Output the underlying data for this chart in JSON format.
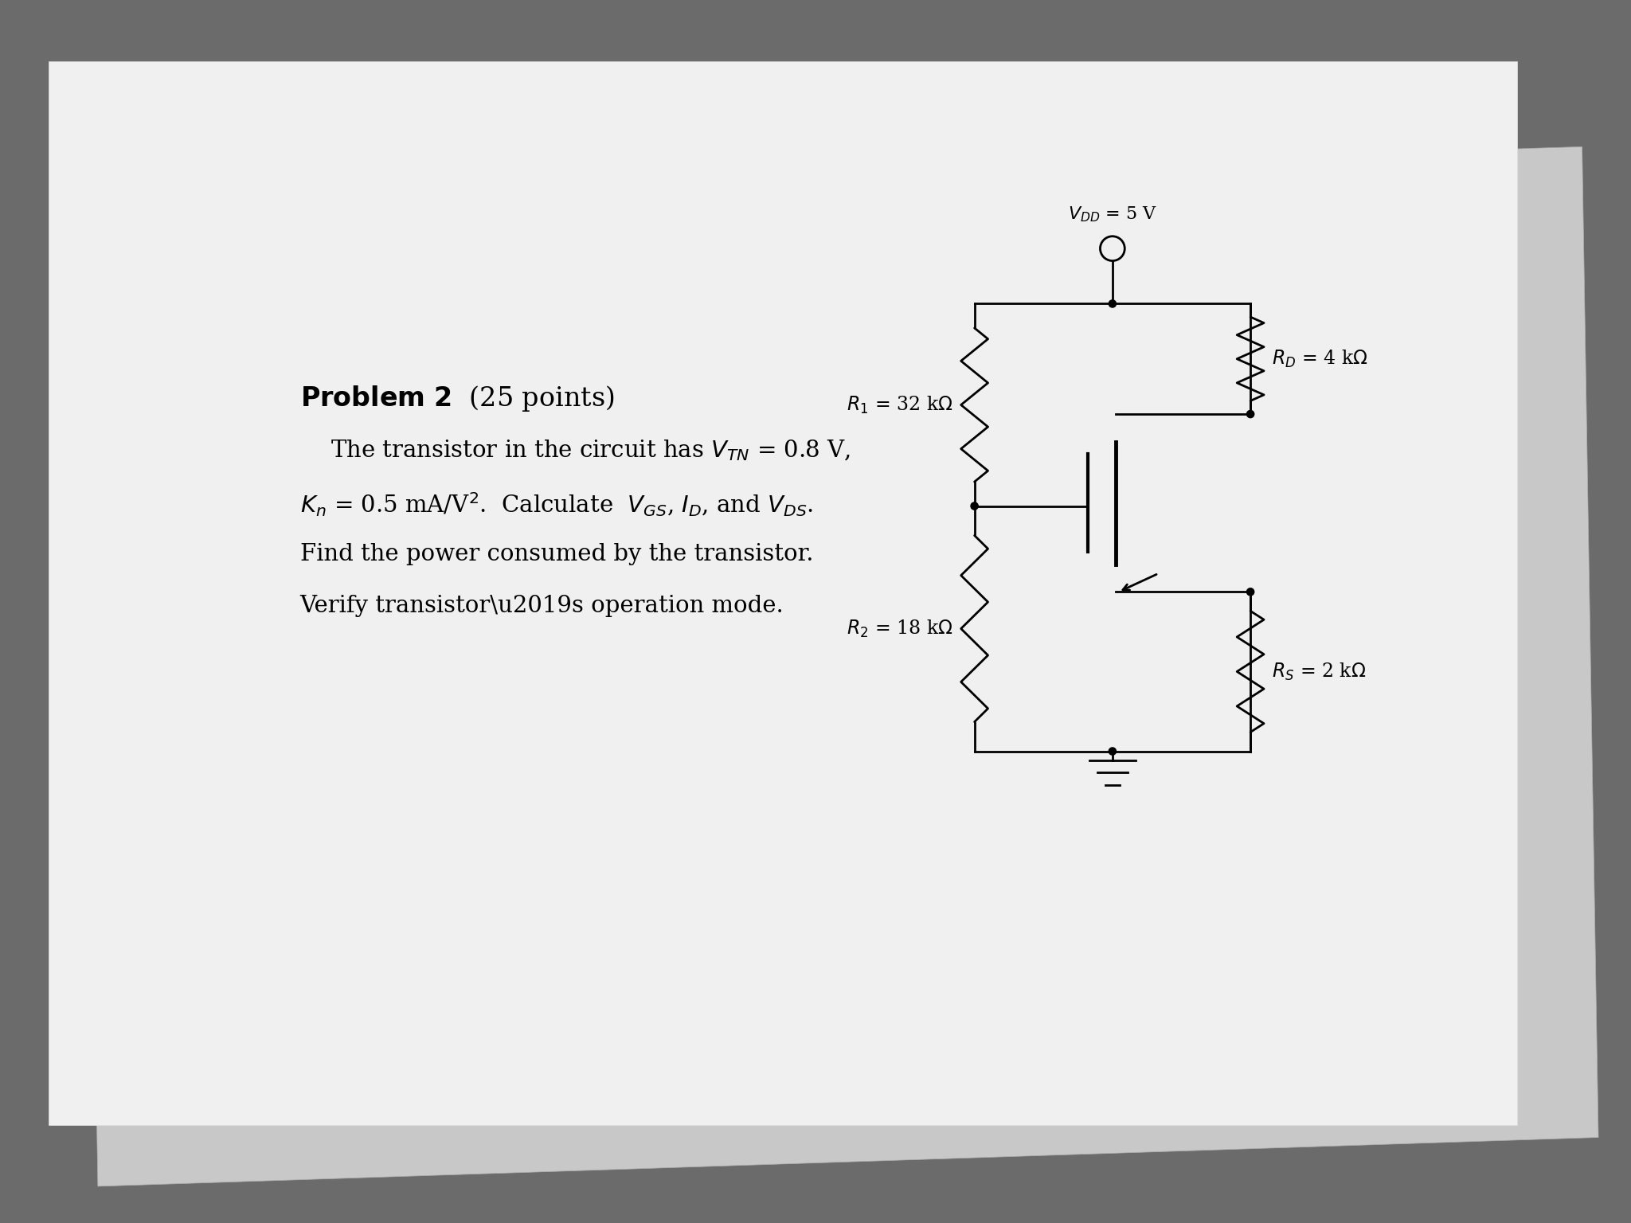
{
  "bg_color": "#6b6b6b",
  "back_paper_color": "#d0d0d0",
  "main_paper_color": "#f2f2f2",
  "line_color": "#000000",
  "text_color": "#000000",
  "title_bold": "Problem 2",
  "title_normal": " (25 points)",
  "vdd_label": "$V_{DD}$ = 5 V",
  "r1_label": "$R_1$ = 32 k$\\Omega$",
  "r2_label": "$R_2$ = 18 k$\\Omega$",
  "rd_label": "$R_D$ = 4 k$\\Omega$",
  "rs_label": "$R_S$ = 2 k$\\Omega$",
  "lw": 2.0,
  "dot_r": 0.06
}
